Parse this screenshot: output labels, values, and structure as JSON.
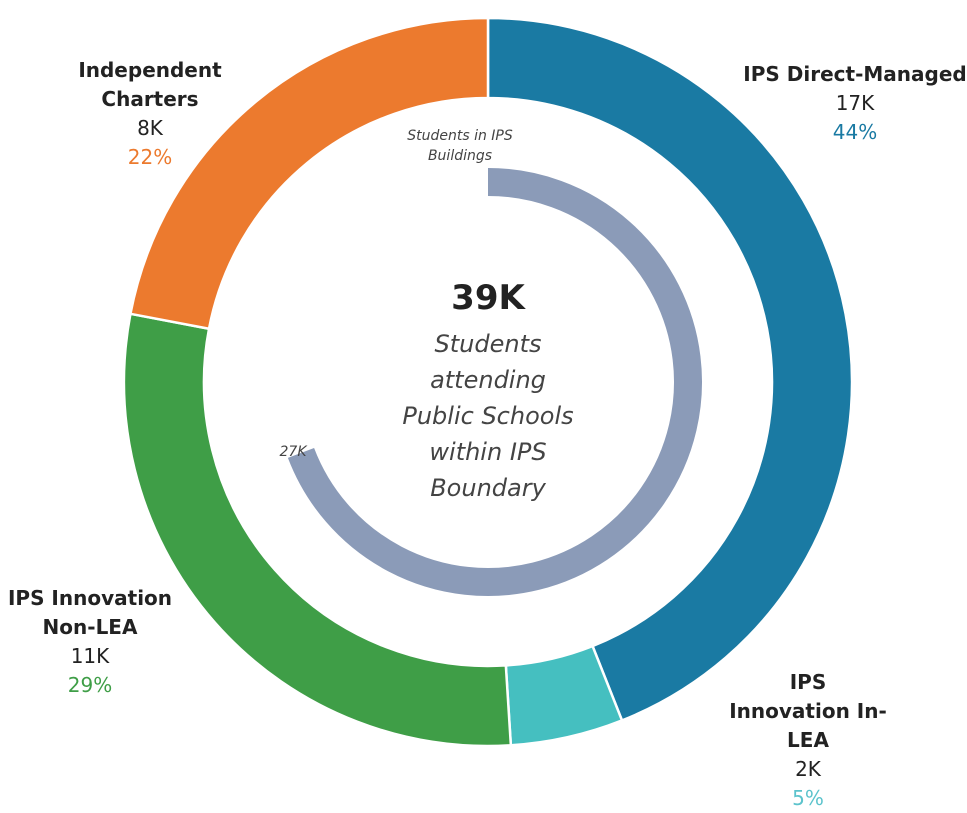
{
  "chart_data": {
    "type": "pie",
    "donut": true,
    "categories": [
      "IPS Direct-Managed",
      "IPS Innovation In-LEA",
      "IPS Innovation Non-LEA",
      "Independent Charters"
    ],
    "values": [
      44,
      5,
      29,
      22
    ],
    "value_labels": [
      "44%",
      "5%",
      "29%",
      "22%"
    ],
    "count_labels": [
      "17K",
      "2K",
      "11K",
      "8K"
    ],
    "colors": [
      "#1a7aa3",
      "#45bfc0",
      "#3f9e47",
      "#ec7a2e"
    ],
    "label_colors": [
      "#1a7aa3",
      "#5cc3cc",
      "#3f9e47",
      "#ec7a2e"
    ],
    "center_value": 39,
    "center_label": "39K",
    "center_text": "Students attending Public Schools within IPS Boundary",
    "inner_arc": {
      "label": "Students in IPS Buildings",
      "value": 27,
      "value_label": "27K",
      "color": "#8b9bb8"
    }
  }
}
